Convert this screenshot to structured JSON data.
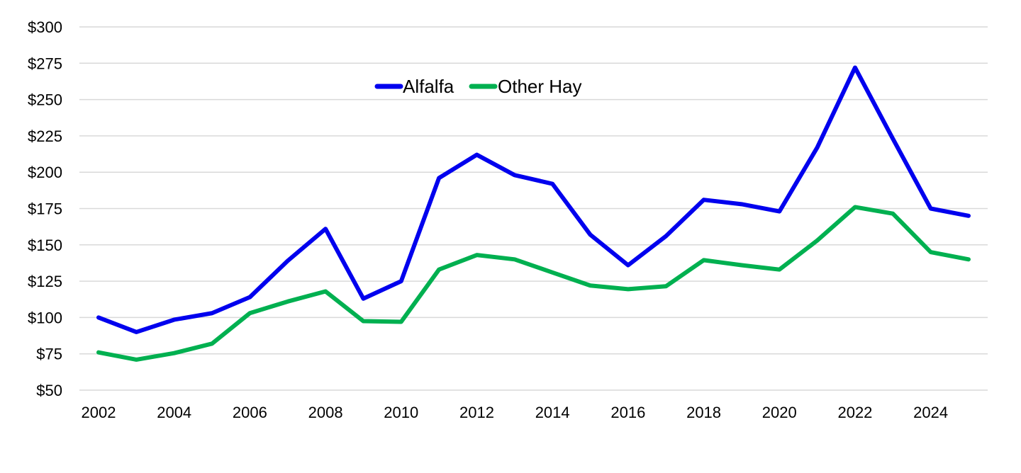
{
  "chart_data": {
    "type": "line",
    "title": "",
    "xlabel": "",
    "ylabel": "",
    "ylim": [
      50,
      300
    ],
    "xlim": [
      2002,
      2025
    ],
    "grid": true,
    "legend_placement": "top-center",
    "y_ticks": [
      "$50",
      "$75",
      "$100",
      "$125",
      "$150",
      "$175",
      "$200",
      "$225",
      "$250",
      "$275",
      "$300"
    ],
    "y_tick_values": [
      50,
      75,
      100,
      125,
      150,
      175,
      200,
      225,
      250,
      275,
      300
    ],
    "x_ticks": [
      "2002",
      "2004",
      "2006",
      "2008",
      "2010",
      "2012",
      "2014",
      "2016",
      "2018",
      "2020",
      "2022",
      "2024"
    ],
    "x_tick_values": [
      2002,
      2004,
      2006,
      2008,
      2010,
      2012,
      2014,
      2016,
      2018,
      2020,
      2022,
      2024
    ],
    "x": [
      2002,
      2003,
      2004,
      2005,
      2006,
      2007,
      2008,
      2009,
      2010,
      2011,
      2012,
      2013,
      2014,
      2015,
      2016,
      2017,
      2018,
      2019,
      2020,
      2021,
      2022,
      2023,
      2024,
      2025
    ],
    "series": [
      {
        "name": "Alfalfa",
        "color": "#0000ee",
        "values": [
          100,
          90,
          98.5,
          103,
          114,
          139,
          161,
          113,
          125,
          196,
          212,
          198,
          192,
          157,
          136,
          156,
          181,
          178,
          173,
          217,
          272,
          223,
          175,
          170
        ]
      },
      {
        "name": "Other Hay",
        "color": "#00b050",
        "values": [
          76,
          71,
          75.5,
          82,
          103,
          111,
          118,
          97.5,
          97,
          133,
          143,
          140,
          131,
          122,
          119.5,
          121.5,
          139.5,
          136,
          133,
          153,
          176,
          171.5,
          145,
          140
        ]
      }
    ]
  }
}
